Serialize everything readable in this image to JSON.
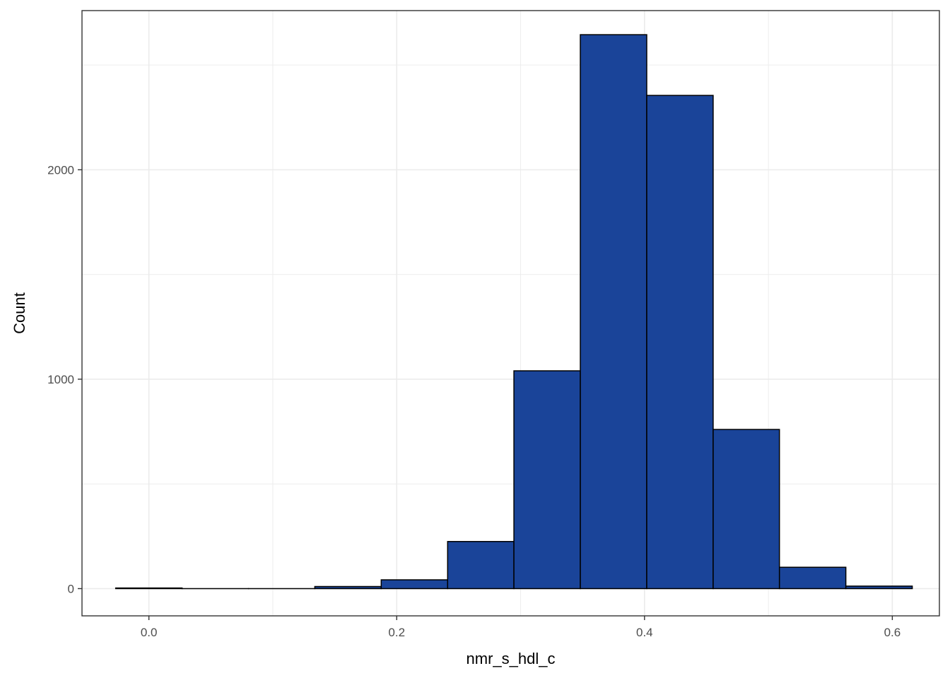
{
  "chart_data": {
    "type": "bar",
    "title": "",
    "xlabel": "nmr_s_hdl_c",
    "ylabel": "Count",
    "xlim": [
      -0.054,
      0.638
    ],
    "ylim": [
      -130,
      2760
    ],
    "x_ticks": [
      {
        "value": 0.0,
        "label": "0.0"
      },
      {
        "value": 0.2,
        "label": "0.2"
      },
      {
        "value": 0.4,
        "label": "0.4"
      },
      {
        "value": 0.6,
        "label": "0.6"
      }
    ],
    "y_ticks": [
      {
        "value": 0,
        "label": "0"
      },
      {
        "value": 1000,
        "label": "1000"
      },
      {
        "value": 2000,
        "label": "2000"
      }
    ],
    "x_minor": [
      0.1,
      0.3,
      0.5
    ],
    "y_minor": [
      500,
      1500,
      2500
    ],
    "bins": [
      {
        "x0": -0.0268,
        "x1": 0.0268,
        "count": 3
      },
      {
        "x0": 0.0268,
        "x1": 0.0804,
        "count": 0
      },
      {
        "x0": 0.0804,
        "x1": 0.1339,
        "count": 0
      },
      {
        "x0": 0.1339,
        "x1": 0.1875,
        "count": 10
      },
      {
        "x0": 0.1875,
        "x1": 0.2411,
        "count": 42
      },
      {
        "x0": 0.2411,
        "x1": 0.2946,
        "count": 225
      },
      {
        "x0": 0.2946,
        "x1": 0.3482,
        "count": 1040
      },
      {
        "x0": 0.3482,
        "x1": 0.4018,
        "count": 2645
      },
      {
        "x0": 0.4018,
        "x1": 0.4554,
        "count": 2355
      },
      {
        "x0": 0.4554,
        "x1": 0.5089,
        "count": 760
      },
      {
        "x0": 0.5089,
        "x1": 0.5625,
        "count": 102
      },
      {
        "x0": 0.5625,
        "x1": 0.6161,
        "count": 12
      }
    ],
    "fill_color": "#1a4499",
    "stroke_color": "#000000",
    "grid": true,
    "grid_color": "#ebebeb",
    "panel_border_color": "#333333"
  }
}
